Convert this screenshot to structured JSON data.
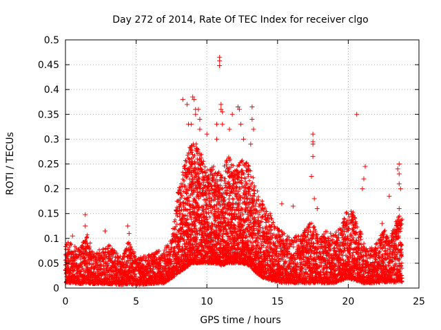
{
  "chart_data": {
    "type": "scatter",
    "title": "Day 272 of 2014, Rate Of TEC Index for receiver clgo",
    "xlabel": "GPS time / hours",
    "ylabel": "ROTI / TECUs",
    "xlim": [
      0,
      25
    ],
    "ylim": [
      0,
      0.5
    ],
    "x_ticks": [
      "0",
      "5",
      "10",
      "15",
      "20",
      "25"
    ],
    "y_ticks": [
      "0",
      "0.05",
      "0.1",
      "0.15",
      "0.2",
      "0.25",
      "0.3",
      "0.35",
      "0.4",
      "0.45",
      "0.5"
    ],
    "grid": true,
    "marker": "+",
    "series_color": "#ff0000",
    "envelope": {
      "description": "approximate upper and lower bounds of the dense ROTI cloud over time",
      "t": [
        0.0,
        0.5,
        1.0,
        1.5,
        2.0,
        3.0,
        4.0,
        4.5,
        5.0,
        6.0,
        7.0,
        7.5,
        8.0,
        8.5,
        9.0,
        9.5,
        10.0,
        10.5,
        11.0,
        11.5,
        12.0,
        12.5,
        13.0,
        13.5,
        14.0,
        14.5,
        15.0,
        15.5,
        16.0,
        17.0,
        17.5,
        18.0,
        18.5,
        19.0,
        19.5,
        20.0,
        20.5,
        21.0,
        21.5,
        22.0,
        22.5,
        23.0,
        23.5,
        23.8
      ],
      "upper": [
        0.095,
        0.09,
        0.08,
        0.11,
        0.07,
        0.09,
        0.06,
        0.1,
        0.06,
        0.07,
        0.08,
        0.1,
        0.2,
        0.26,
        0.3,
        0.28,
        0.24,
        0.25,
        0.23,
        0.27,
        0.24,
        0.26,
        0.25,
        0.2,
        0.17,
        0.15,
        0.12,
        0.11,
        0.1,
        0.12,
        0.14,
        0.1,
        0.12,
        0.11,
        0.13,
        0.16,
        0.15,
        0.1,
        0.08,
        0.09,
        0.12,
        0.1,
        0.15,
        0.14
      ],
      "lower": [
        0.01,
        0.01,
        0.008,
        0.01,
        0.008,
        0.008,
        0.006,
        0.008,
        0.006,
        0.008,
        0.01,
        0.02,
        0.03,
        0.04,
        0.05,
        0.05,
        0.05,
        0.05,
        0.045,
        0.05,
        0.05,
        0.05,
        0.045,
        0.03,
        0.02,
        0.015,
        0.012,
        0.01,
        0.01,
        0.01,
        0.01,
        0.01,
        0.01,
        0.01,
        0.015,
        0.02,
        0.015,
        0.01,
        0.01,
        0.01,
        0.012,
        0.01,
        0.012,
        0.012
      ]
    },
    "outliers": [
      {
        "x": 0.5,
        "y": 0.105
      },
      {
        "x": 1.4,
        "y": 0.148
      },
      {
        "x": 1.4,
        "y": 0.125
      },
      {
        "x": 2.8,
        "y": 0.115
      },
      {
        "x": 4.4,
        "y": 0.125
      },
      {
        "x": 4.5,
        "y": 0.11
      },
      {
        "x": 8.3,
        "y": 0.38
      },
      {
        "x": 8.6,
        "y": 0.37
      },
      {
        "x": 8.7,
        "y": 0.33
      },
      {
        "x": 8.9,
        "y": 0.33
      },
      {
        "x": 9.0,
        "y": 0.385
      },
      {
        "x": 9.1,
        "y": 0.38
      },
      {
        "x": 9.2,
        "y": 0.36
      },
      {
        "x": 9.2,
        "y": 0.35
      },
      {
        "x": 9.4,
        "y": 0.36
      },
      {
        "x": 9.5,
        "y": 0.34
      },
      {
        "x": 9.5,
        "y": 0.32
      },
      {
        "x": 10.0,
        "y": 0.31
      },
      {
        "x": 10.7,
        "y": 0.33
      },
      {
        "x": 10.7,
        "y": 0.3
      },
      {
        "x": 10.9,
        "y": 0.465
      },
      {
        "x": 10.9,
        "y": 0.458
      },
      {
        "x": 10.9,
        "y": 0.448
      },
      {
        "x": 11.0,
        "y": 0.37
      },
      {
        "x": 11.0,
        "y": 0.36
      },
      {
        "x": 11.1,
        "y": 0.355
      },
      {
        "x": 11.1,
        "y": 0.33
      },
      {
        "x": 11.6,
        "y": 0.32
      },
      {
        "x": 11.8,
        "y": 0.35
      },
      {
        "x": 12.2,
        "y": 0.365
      },
      {
        "x": 12.3,
        "y": 0.36
      },
      {
        "x": 12.4,
        "y": 0.33
      },
      {
        "x": 12.6,
        "y": 0.3
      },
      {
        "x": 13.2,
        "y": 0.365
      },
      {
        "x": 13.2,
        "y": 0.34
      },
      {
        "x": 13.3,
        "y": 0.32
      },
      {
        "x": 13.1,
        "y": 0.29
      },
      {
        "x": 15.3,
        "y": 0.17
      },
      {
        "x": 16.1,
        "y": 0.165
      },
      {
        "x": 17.5,
        "y": 0.31
      },
      {
        "x": 17.5,
        "y": 0.295
      },
      {
        "x": 17.5,
        "y": 0.29
      },
      {
        "x": 17.5,
        "y": 0.265
      },
      {
        "x": 17.4,
        "y": 0.225
      },
      {
        "x": 17.6,
        "y": 0.18
      },
      {
        "x": 17.8,
        "y": 0.16
      },
      {
        "x": 20.6,
        "y": 0.35
      },
      {
        "x": 21.2,
        "y": 0.245
      },
      {
        "x": 21.1,
        "y": 0.22
      },
      {
        "x": 21.0,
        "y": 0.2
      },
      {
        "x": 22.4,
        "y": 0.13
      },
      {
        "x": 22.9,
        "y": 0.185
      },
      {
        "x": 23.5,
        "y": 0.24
      },
      {
        "x": 23.6,
        "y": 0.25
      },
      {
        "x": 23.6,
        "y": 0.23
      },
      {
        "x": 23.6,
        "y": 0.21
      },
      {
        "x": 23.7,
        "y": 0.2
      },
      {
        "x": 23.6,
        "y": 0.16
      }
    ],
    "cloud_seed": 27214,
    "cloud_density": 30
  }
}
